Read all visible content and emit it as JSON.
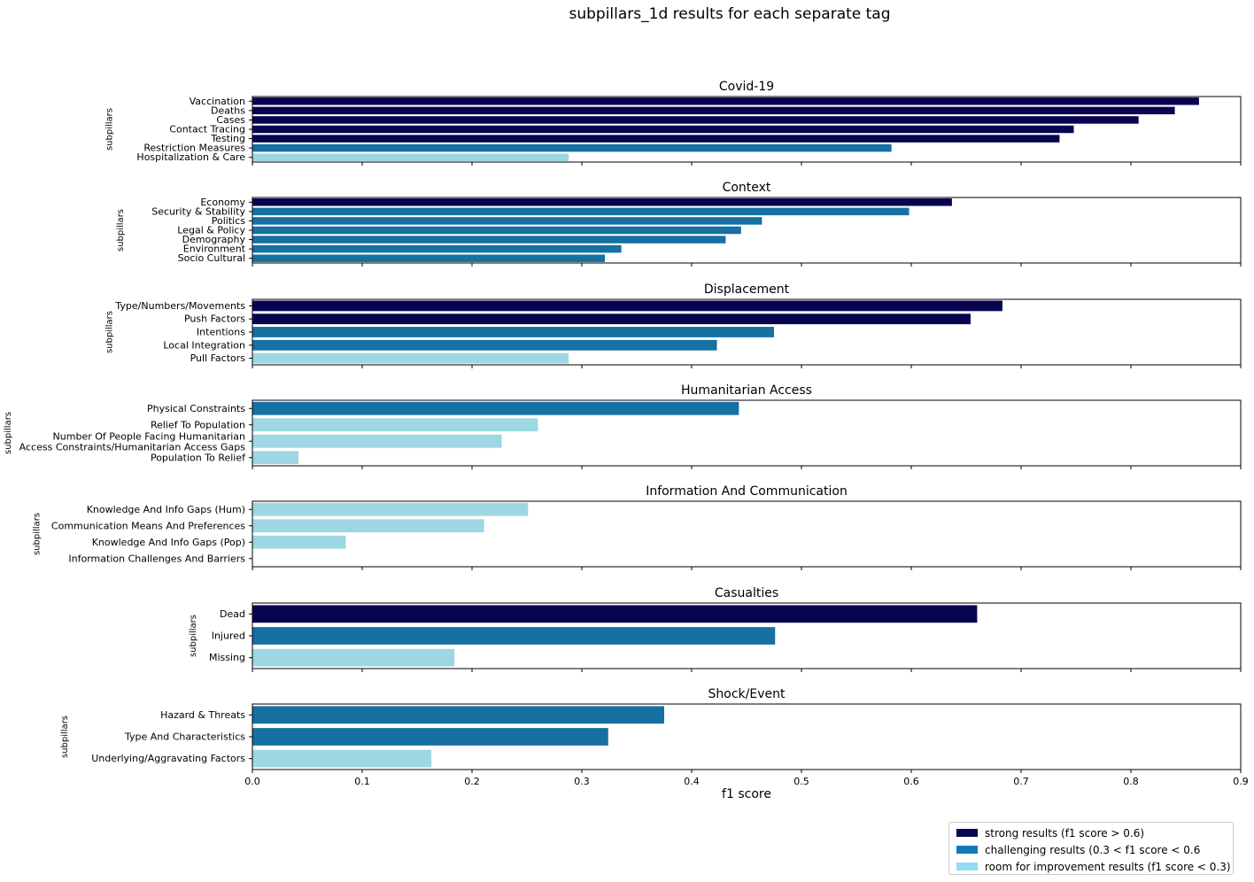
{
  "chart_data": {
    "type": "bar",
    "orientation": "horizontal",
    "title": "subpillars_1d results for each separate tag",
    "xlabel": "f1 score",
    "ylabel": "subpillars",
    "xlim": [
      0,
      0.9
    ],
    "xticks": [
      "0.0",
      "0.1",
      "0.2",
      "0.3",
      "0.4",
      "0.5",
      "0.6",
      "0.7",
      "0.8",
      "0.9"
    ],
    "grid": false,
    "colors": {
      "strong": "#080550",
      "challenging": "#1670a1",
      "improvement": "#9dd7e2"
    },
    "legend": {
      "placement": "bottom-right",
      "entries": [
        {
          "label": "strong results (f1 score > 0.6)",
          "color": "#080550"
        },
        {
          "label": "challenging results (0.3 < f1 score < 0.6",
          "color": "#0f79b9"
        },
        {
          "label": "room for improvement results (f1 score < 0.3)",
          "color": "#93dbee"
        }
      ]
    },
    "panels": [
      {
        "title": "Covid-19",
        "categories": [
          "Vaccination",
          "Deaths",
          "Cases",
          "Contact Tracing",
          "Testing",
          "Restriction Measures",
          "Hospitalization & Care"
        ],
        "values": [
          0.862,
          0.84,
          0.807,
          0.748,
          0.735,
          0.582,
          0.288
        ]
      },
      {
        "title": "Context",
        "categories": [
          "Economy",
          "Security & Stability",
          "Politics",
          "Legal & Policy",
          "Demography",
          "Environment",
          "Socio Cultural"
        ],
        "values": [
          0.637,
          0.598,
          0.464,
          0.445,
          0.431,
          0.336,
          0.321
        ]
      },
      {
        "title": "Displacement",
        "categories": [
          "Type/Numbers/Movements",
          "Push Factors",
          "Intentions",
          "Local Integration",
          "Pull Factors"
        ],
        "values": [
          0.683,
          0.654,
          0.475,
          0.423,
          0.288
        ]
      },
      {
        "title": "Humanitarian Access",
        "categories": [
          "Physical Constraints",
          "Relief To Population",
          "Number Of People Facing Humanitarian\nAccess Constraints/Humanitarian Access Gaps",
          "Population To Relief"
        ],
        "values": [
          0.443,
          0.26,
          0.227,
          0.042
        ]
      },
      {
        "title": "Information And Communication",
        "categories": [
          "Knowledge And Info Gaps (Hum)",
          "Communication Means And Preferences",
          "Knowledge And Info Gaps (Pop)",
          "Information Challenges And Barriers"
        ],
        "values": [
          0.251,
          0.211,
          0.085,
          0.0
        ]
      },
      {
        "title": "Casualties",
        "categories": [
          "Dead",
          "Injured",
          "Missing"
        ],
        "values": [
          0.66,
          0.476,
          0.184
        ]
      },
      {
        "title": "Shock/Event",
        "categories": [
          "Hazard & Threats",
          "Type And Characteristics",
          "Underlying/Aggravating Factors"
        ],
        "values": [
          0.375,
          0.324,
          0.163
        ]
      }
    ]
  }
}
